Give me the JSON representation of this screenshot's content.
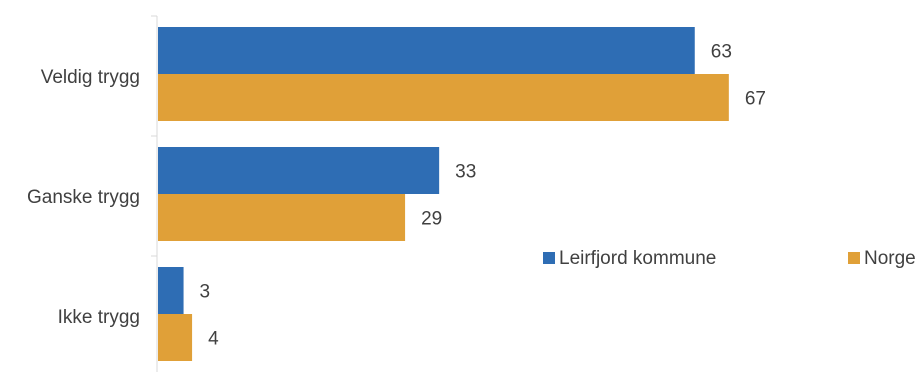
{
  "chart_data": {
    "type": "bar",
    "orientation": "horizontal",
    "categories": [
      "Veldig trygg",
      "Ganske trygg",
      "Ikke trygg"
    ],
    "series": [
      {
        "name": "Leirfjord kommune",
        "color": "#2e6db4",
        "values": [
          63,
          33,
          3
        ]
      },
      {
        "name": "Norge",
        "color": "#e0a038",
        "values": [
          67,
          29,
          4
        ]
      }
    ],
    "xlim": [
      0,
      90
    ],
    "legend_position": "right",
    "grid": false
  }
}
